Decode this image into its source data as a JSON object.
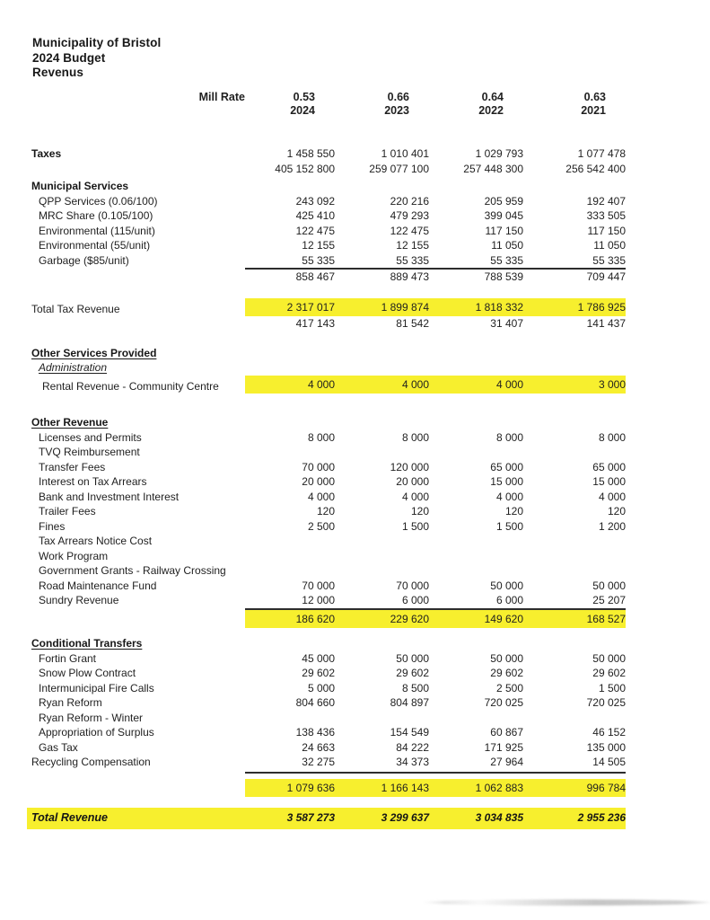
{
  "document": {
    "title_lines": [
      "Municipality of Bristol",
      "2024 Budget",
      "Revenus"
    ],
    "mill_rate_label": "Mill Rate",
    "year_columns": [
      {
        "mill_rate": "0.53",
        "year": "2024"
      },
      {
        "mill_rate": "0.66",
        "year": "2023"
      },
      {
        "mill_rate": "0.64",
        "year": "2022"
      },
      {
        "mill_rate": "0.63",
        "year": "2021"
      }
    ],
    "highlight_color": "#f7ef2e",
    "rows": [
      {
        "label": "Taxes",
        "bold": true,
        "gap": 32,
        "values": [
          "1 458 550",
          "1 010 401",
          "1 029 793",
          "1 077 478"
        ]
      },
      {
        "label": "",
        "values": [
          "405 152 800",
          "259 077 100",
          "257 448 300",
          "256 542 400"
        ]
      },
      {
        "label": "Municipal Services",
        "bold": true,
        "gap": 3,
        "values": []
      },
      {
        "label": "QPP Services (0.06/100)",
        "indent": 1,
        "values": [
          "243 092",
          "220 216",
          "205 959",
          "192 407"
        ]
      },
      {
        "label": "MRC Share (0.105/100)",
        "indent": 1,
        "values": [
          "425 410",
          "479 293",
          "399 045",
          "333 505"
        ]
      },
      {
        "label": "Environmental (115/unit)",
        "indent": 1,
        "values": [
          "122 475",
          "122 475",
          "117 150",
          "117 150"
        ]
      },
      {
        "label": "Environmental (55/unit)",
        "indent": 1,
        "values": [
          "12 155",
          "12 155",
          "11 050",
          "11 050"
        ]
      },
      {
        "label": "Garbage ($85/unit)",
        "indent": 1,
        "values": [
          "55 335",
          "55 335",
          "55 335",
          "55 335"
        ]
      },
      {
        "label": "",
        "topline": true,
        "values": [
          "858 467",
          "889 473",
          "788 539",
          "709 447"
        ]
      },
      {
        "label": "Total Tax Revenue",
        "highlight": "values",
        "gap": 15,
        "values": [
          "2 317 017",
          "1 899 874",
          "1 818 332",
          "1 786 925"
        ]
      },
      {
        "label": "",
        "values": [
          "417 143",
          "81 542",
          "31 407",
          "141 437"
        ]
      },
      {
        "label": "Other Services Provided",
        "bold": true,
        "underline": true,
        "gap": 16,
        "values": []
      },
      {
        "label": "Administration",
        "italic": true,
        "underline": true,
        "indent": 1,
        "values": []
      },
      {
        "label": "Rental Revenue - Community Centre",
        "indent": 2,
        "highlight": "values",
        "values": [
          "4 000",
          "4 000",
          "4 000",
          "3 000"
        ]
      },
      {
        "label": "Other Revenue",
        "bold": true,
        "underline": true,
        "gap": 24,
        "values": []
      },
      {
        "label": "Licenses and Permits",
        "indent": 1,
        "values": [
          "8 000",
          "8 000",
          "8 000",
          "8 000"
        ]
      },
      {
        "label": "TVQ Reimbursement",
        "indent": 1,
        "values": []
      },
      {
        "label": "Transfer Fees",
        "indent": 1,
        "values": [
          "70 000",
          "120 000",
          "65 000",
          "65 000"
        ]
      },
      {
        "label": "Interest on Tax Arrears",
        "indent": 1,
        "values": [
          "20 000",
          "20 000",
          "15 000",
          "15 000"
        ]
      },
      {
        "label": "Bank and Investment Interest",
        "indent": 1,
        "values": [
          "4 000",
          "4 000",
          "4 000",
          "4 000"
        ]
      },
      {
        "label": "Trailer Fees",
        "indent": 1,
        "values": [
          "120",
          "120",
          "120",
          "120"
        ]
      },
      {
        "label": "Fines",
        "indent": 1,
        "values": [
          "2 500",
          "1 500",
          "1 500",
          "1 200"
        ]
      },
      {
        "label": "Tax Arrears Notice Cost",
        "indent": 1,
        "values": []
      },
      {
        "label": "Work Program",
        "indent": 1,
        "values": []
      },
      {
        "label": "Government Grants - Railway Crossing",
        "indent": 1,
        "values": []
      },
      {
        "label": "Road Maintenance Fund",
        "indent": 1,
        "values": [
          "70 000",
          "70 000",
          "50 000",
          "50 000"
        ]
      },
      {
        "label": "Sundry Revenue",
        "indent": 1,
        "values": [
          "12 000",
          "6 000",
          "6 000",
          "25 207"
        ]
      },
      {
        "label": "",
        "highlight": "values",
        "topline": true,
        "values": [
          "186 620",
          "229 620",
          "149 620",
          "168 527"
        ]
      },
      {
        "label": "Conditional Transfers",
        "bold": true,
        "underline": true,
        "gap": 9,
        "values": []
      },
      {
        "label": "Fortin Grant",
        "indent": 1,
        "values": [
          "45 000",
          "50 000",
          "50 000",
          "50 000"
        ]
      },
      {
        "label": "Snow Plow Contract",
        "indent": 1,
        "values": [
          "29 602",
          "29 602",
          "29 602",
          "29 602"
        ]
      },
      {
        "label": "Intermunicipal Fire Calls",
        "indent": 1,
        "values": [
          "5 000",
          "8 500",
          "2 500",
          "1 500"
        ]
      },
      {
        "label": "Ryan Reform",
        "indent": 1,
        "values": [
          "804 660",
          "804 897",
          "720 025",
          "720 025"
        ]
      },
      {
        "label": "Ryan Reform - Winter",
        "indent": 1,
        "values": []
      },
      {
        "label": "Appropriation of Surplus",
        "indent": 1,
        "values": [
          "138 436",
          "154 549",
          "60 867",
          "46 152"
        ]
      },
      {
        "label": "Gas Tax",
        "indent": 1,
        "values": [
          "24 663",
          "84 222",
          "171 925",
          "135 000"
        ]
      },
      {
        "label": "Recycling Compensation",
        "values": [
          "32 275",
          "34 373",
          "27 964",
          "14 505"
        ]
      },
      {
        "label": "",
        "rule_only": true,
        "gap": 2,
        "values": [
          "",
          "",
          "",
          ""
        ]
      },
      {
        "label": "",
        "highlight": "values",
        "gap": 5,
        "values": [
          "1 079 636",
          "1 166 143",
          "1 062 883",
          "996 784"
        ]
      },
      {
        "label": "Total Revenue",
        "highlight": "full",
        "total_style": true,
        "gap": 12,
        "values": [
          "3 587 273",
          "3 299 637",
          "3 034 835",
          "2 955 236"
        ]
      }
    ]
  }
}
